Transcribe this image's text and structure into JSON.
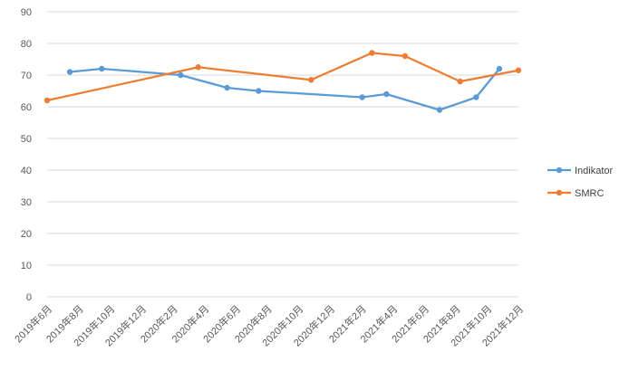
{
  "chart_data": {
    "type": "line",
    "title": "",
    "xlabel": "",
    "ylabel": "",
    "ylim": [
      0,
      90
    ],
    "yticks": [
      0,
      10,
      20,
      30,
      40,
      50,
      60,
      70,
      80,
      90
    ],
    "grid": true,
    "legend_position": "right",
    "xticks": [
      "2019年6月",
      "2019年8月",
      "2019年10月",
      "2019年12月",
      "2020年2月",
      "2020年4月",
      "2020年6月",
      "2020年8月",
      "2020年10月",
      "2020年12月",
      "2021年2月",
      "2021年4月",
      "2021年6月",
      "2021年8月",
      "2021年10月",
      "2021年12月"
    ],
    "xrange": [
      "2019-06-01",
      "2021-12-01"
    ],
    "series": [
      {
        "name": "Indikator",
        "color": "#5B9BD5",
        "points": [
          {
            "x": "2019-07-15",
            "y": 71
          },
          {
            "x": "2019-09-15",
            "y": 72
          },
          {
            "x": "2020-02-15",
            "y": 70
          },
          {
            "x": "2020-05-15",
            "y": 66
          },
          {
            "x": "2020-07-15",
            "y": 65
          },
          {
            "x": "2021-02-01",
            "y": 63
          },
          {
            "x": "2021-03-20",
            "y": 64
          },
          {
            "x": "2021-07-01",
            "y": 59
          },
          {
            "x": "2021-09-10",
            "y": 63
          },
          {
            "x": "2021-10-25",
            "y": 72
          }
        ]
      },
      {
        "name": "SMRC",
        "color": "#ED7D31",
        "points": [
          {
            "x": "2019-06-01",
            "y": 62
          },
          {
            "x": "2020-03-20",
            "y": 72.5
          },
          {
            "x": "2020-10-25",
            "y": 68.5
          },
          {
            "x": "2021-02-20",
            "y": 77
          },
          {
            "x": "2021-04-25",
            "y": 76
          },
          {
            "x": "2021-08-10",
            "y": 68
          },
          {
            "x": "2021-12-01",
            "y": 71.5
          }
        ]
      }
    ]
  }
}
